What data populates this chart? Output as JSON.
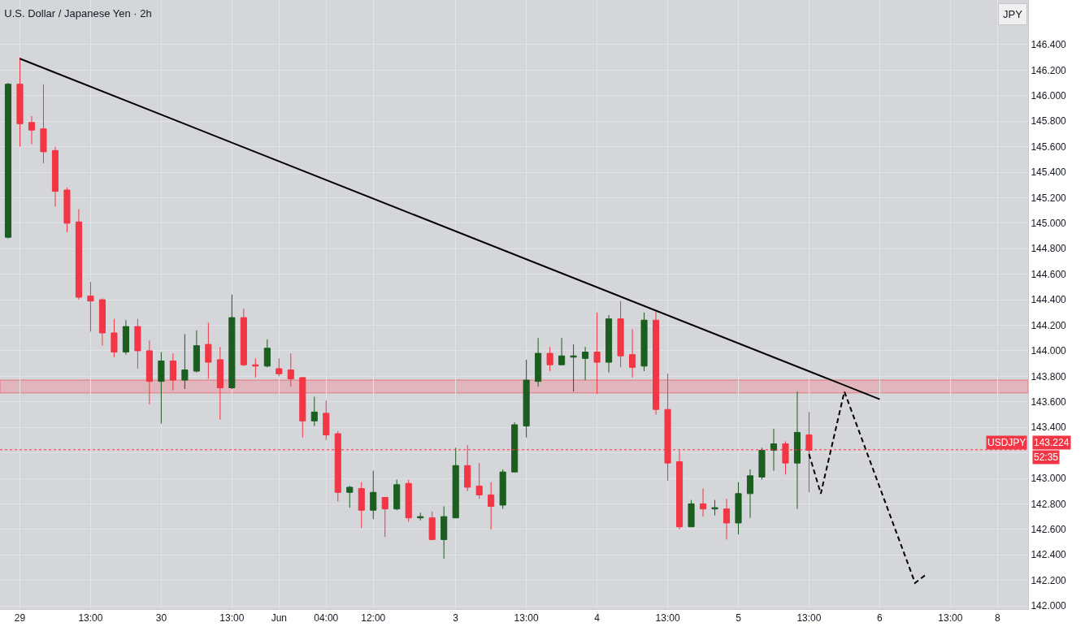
{
  "chart_data": {
    "type": "candlestick",
    "title": "U.S. Dollar / Japanese Yen · 2h",
    "categories": [
      null,
      "29",
      null,
      null,
      null,
      null,
      null,
      "13:00",
      null,
      null,
      null,
      null,
      null,
      "30",
      null,
      null,
      null,
      null,
      null,
      "13:00",
      null,
      null,
      null,
      "Jun",
      null,
      null,
      null,
      "04:00",
      null,
      null,
      null,
      "12:00",
      null,
      null,
      null,
      null,
      null,
      null,
      "3",
      null,
      null,
      null,
      null,
      null,
      "13:00",
      null,
      null,
      null,
      null,
      null,
      "4",
      null,
      null,
      null,
      null,
      null,
      "13:00",
      null,
      null,
      null,
      null,
      null,
      "5",
      null,
      null,
      null,
      null,
      null,
      "13:00",
      null,
      null,
      null,
      null,
      null,
      "6",
      null,
      null,
      null,
      null,
      null,
      "13:00",
      null,
      null,
      null,
      "8",
      null,
      null
    ],
    "ohlc": [
      [
        144.89,
        146.1,
        144.88,
        146.09
      ],
      [
        146.09,
        146.3,
        145.6,
        145.78
      ],
      [
        145.79,
        145.84,
        145.62,
        145.73
      ],
      [
        145.74,
        146.09,
        145.47,
        145.56
      ],
      [
        145.57,
        145.6,
        145.13,
        145.25
      ],
      [
        145.26,
        145.28,
        144.93,
        145.0
      ],
      [
        145.01,
        145.11,
        144.4,
        144.42
      ],
      [
        144.43,
        144.54,
        144.15,
        144.39
      ],
      [
        144.4,
        144.41,
        144.04,
        144.14
      ],
      [
        144.14,
        144.25,
        143.95,
        143.99
      ],
      [
        143.99,
        144.24,
        143.97,
        144.19
      ],
      [
        144.19,
        144.25,
        143.86,
        144.0
      ],
      [
        144.0,
        144.08,
        143.58,
        143.76
      ],
      [
        143.76,
        143.99,
        143.43,
        143.92
      ],
      [
        143.92,
        143.98,
        143.69,
        143.77
      ],
      [
        143.77,
        144.13,
        143.7,
        143.85
      ],
      [
        143.84,
        144.16,
        143.83,
        144.04
      ],
      [
        144.05,
        144.22,
        143.78,
        143.91
      ],
      [
        143.93,
        144.03,
        143.46,
        143.71
      ],
      [
        143.71,
        144.44,
        143.7,
        144.26
      ],
      [
        144.26,
        144.33,
        143.88,
        143.89
      ],
      [
        143.89,
        143.94,
        143.79,
        143.88
      ],
      [
        143.88,
        144.09,
        143.87,
        144.02
      ],
      [
        143.86,
        143.94,
        143.8,
        143.82
      ],
      [
        143.85,
        143.98,
        143.72,
        143.78
      ],
      [
        143.79,
        143.79,
        143.32,
        143.45
      ],
      [
        143.45,
        143.64,
        143.41,
        143.52
      ],
      [
        143.51,
        143.61,
        143.3,
        143.34
      ],
      [
        143.35,
        143.37,
        142.82,
        142.89
      ],
      [
        142.89,
        142.94,
        142.77,
        142.93
      ],
      [
        142.92,
        142.97,
        142.61,
        142.75
      ],
      [
        142.75,
        143.06,
        142.68,
        142.89
      ],
      [
        142.85,
        142.85,
        142.54,
        142.76
      ],
      [
        142.76,
        142.99,
        142.75,
        142.95
      ],
      [
        142.96,
        142.99,
        142.66,
        142.69
      ],
      [
        142.69,
        142.73,
        142.67,
        142.7
      ],
      [
        142.69,
        142.74,
        142.52,
        142.52
      ],
      [
        142.52,
        142.78,
        142.37,
        142.7
      ],
      [
        142.69,
        143.24,
        142.69,
        143.1
      ],
      [
        143.1,
        143.26,
        142.9,
        142.93
      ],
      [
        142.94,
        143.12,
        142.84,
        142.87
      ],
      [
        142.87,
        142.97,
        142.6,
        142.78
      ],
      [
        142.79,
        143.07,
        142.76,
        143.05
      ],
      [
        143.05,
        143.44,
        143.05,
        143.42
      ],
      [
        143.41,
        143.93,
        143.32,
        143.77
      ],
      [
        143.76,
        144.1,
        143.72,
        143.98
      ],
      [
        143.98,
        144.03,
        143.84,
        143.89
      ],
      [
        143.89,
        144.1,
        143.89,
        143.96
      ],
      [
        143.95,
        144.05,
        143.68,
        143.96
      ],
      [
        143.94,
        144.03,
        143.77,
        143.99
      ],
      [
        143.99,
        144.3,
        143.66,
        143.91
      ],
      [
        143.91,
        144.28,
        143.83,
        144.25
      ],
      [
        144.25,
        144.39,
        143.87,
        143.96
      ],
      [
        143.97,
        144.17,
        143.79,
        143.87
      ],
      [
        143.88,
        144.3,
        143.84,
        144.24
      ],
      [
        144.24,
        144.31,
        143.5,
        143.54
      ],
      [
        143.54,
        143.82,
        142.98,
        143.12
      ],
      [
        143.13,
        143.22,
        142.6,
        142.62
      ],
      [
        142.62,
        142.83,
        142.62,
        142.8
      ],
      [
        142.8,
        142.92,
        142.7,
        142.76
      ],
      [
        142.76,
        142.83,
        142.71,
        142.77
      ],
      [
        142.76,
        142.84,
        142.52,
        142.65
      ],
      [
        142.65,
        142.97,
        142.56,
        142.88
      ],
      [
        142.88,
        143.07,
        142.69,
        143.02
      ],
      [
        143.01,
        143.24,
        142.99,
        143.22
      ],
      [
        143.22,
        143.39,
        143.06,
        143.27
      ],
      [
        143.27,
        143.29,
        143.03,
        143.12
      ],
      [
        143.12,
        143.68,
        142.76,
        143.36
      ],
      [
        143.34,
        143.52,
        142.89,
        143.22
      ],
      null,
      null,
      null,
      null,
      null,
      null,
      null,
      null,
      null,
      null,
      null,
      null,
      null,
      null,
      null,
      null,
      null,
      null
    ],
    "colors": [
      "#1b5e20",
      "#f23645",
      "#f23645",
      "#f23645",
      "#f23645",
      "#f23645",
      "#f23645",
      "#f23645",
      "#f23645",
      "#f23645",
      "#1b5e20",
      "#f23645",
      "#f23645",
      "#1b5e20",
      "#f23645",
      "#1b5e20",
      "#1b5e20",
      "#f23645",
      "#f23645",
      "#1b5e20",
      "#f23645",
      "#f23645",
      "#1b5e20",
      "#f23645",
      "#f23645",
      "#f23645",
      "#1b5e20",
      "#f23645",
      "#f23645",
      "#1b5e20",
      "#f23645",
      "#1b5e20",
      "#f23645",
      "#1b5e20",
      "#f23645",
      "#1b5e20",
      "#f23645",
      "#1b5e20",
      "#1b5e20",
      "#f23645",
      "#f23645",
      "#f23645",
      "#1b5e20",
      "#1b5e20",
      "#1b5e20",
      "#1b5e20",
      "#f23645",
      "#1b5e20",
      "#1b5e20",
      "#1b5e20",
      "#f23645",
      "#1b5e20",
      "#f23645",
      "#f23645",
      "#1b5e20",
      "#f23645",
      "#f23645",
      "#f23645",
      "#1b5e20",
      "#f23645",
      "#1b5e20",
      "#f23645",
      "#1b5e20",
      "#1b5e20",
      "#1b5e20",
      "#1b5e20",
      "#f23645",
      "#1b5e20",
      "#f23645",
      null,
      null,
      null,
      null,
      null,
      null,
      null,
      null,
      null,
      null,
      null,
      null,
      null,
      null,
      null,
      null,
      null,
      null
    ],
    "series": [
      {
        "type": "line",
        "color": "#000000",
        "line_style": "solid",
        "values": [
          null,
          146.29,
          null,
          null,
          null,
          null,
          null,
          null,
          null,
          null,
          null,
          null,
          null,
          null,
          null,
          null,
          null,
          null,
          null,
          null,
          null,
          null,
          null,
          null,
          null,
          null,
          null,
          null,
          null,
          null,
          null,
          null,
          null,
          null,
          null,
          null,
          null,
          null,
          null,
          null,
          null,
          null,
          null,
          null,
          null,
          null,
          null,
          null,
          null,
          null,
          null,
          null,
          null,
          null,
          null,
          null,
          null,
          null,
          null,
          null,
          null,
          null,
          null,
          null,
          null,
          null,
          null,
          null,
          null,
          null,
          null,
          null,
          null,
          null,
          143.62,
          null,
          null,
          null,
          null,
          null,
          null,
          null,
          null,
          null,
          null,
          null,
          null
        ]
      },
      {
        "type": "line",
        "color": "#000000",
        "line_style": "dashed",
        "values": [
          null,
          null,
          null,
          null,
          null,
          null,
          null,
          null,
          null,
          null,
          null,
          null,
          null,
          null,
          null,
          null,
          null,
          null,
          null,
          null,
          null,
          null,
          null,
          null,
          null,
          null,
          null,
          null,
          null,
          null,
          null,
          null,
          null,
          null,
          null,
          null,
          null,
          null,
          null,
          null,
          null,
          null,
          null,
          null,
          null,
          null,
          null,
          null,
          null,
          null,
          null,
          null,
          null,
          null,
          null,
          null,
          null,
          null,
          null,
          null,
          null,
          null,
          null,
          null,
          null,
          null,
          null,
          null,
          143.19,
          142.88,
          null,
          143.68,
          null,
          null,
          null,
          null,
          null,
          142.18,
          142.25,
          null,
          null,
          null,
          null,
          null,
          null,
          null,
          null
        ]
      }
    ],
    "bands": [
      {
        "axis": "y",
        "from": 143.67,
        "to": 143.77,
        "color": "#e8a0a8"
      }
    ],
    "ref_lines": [
      {
        "axis": "y",
        "value": 143.224,
        "label": "143.224",
        "color": "#f23645",
        "line_style": "dotted"
      }
    ],
    "annotations": [
      "JPY",
      "USDJPY",
      "52:35"
    ],
    "ylim": [
      141.975,
      146.75
    ],
    "yticks": [
      {
        "value": 142.0,
        "label": "142.000"
      },
      {
        "value": 142.2,
        "label": "142.200"
      },
      {
        "value": 142.4,
        "label": "142.400"
      },
      {
        "value": 142.6,
        "label": "142.600"
      },
      {
        "value": 142.8,
        "label": "142.800"
      },
      {
        "value": 143.0,
        "label": "143.000"
      },
      {
        "value": 143.2,
        "label": null
      },
      {
        "value": 143.4,
        "label": "143.400"
      },
      {
        "value": 143.6,
        "label": "143.600"
      },
      {
        "value": 143.8,
        "label": "143.800"
      },
      {
        "value": 144.0,
        "label": "144.000"
      },
      {
        "value": 144.2,
        "label": "144.200"
      },
      {
        "value": 144.4,
        "label": "144.400"
      },
      {
        "value": 144.6,
        "label": "144.600"
      },
      {
        "value": 144.8,
        "label": "144.800"
      },
      {
        "value": 145.0,
        "label": "145.000"
      },
      {
        "value": 145.2,
        "label": "145.200"
      },
      {
        "value": 145.4,
        "label": "145.400"
      },
      {
        "value": 145.6,
        "label": "145.600"
      },
      {
        "value": 145.8,
        "label": "145.800"
      },
      {
        "value": 146.0,
        "label": "146.000"
      },
      {
        "value": 146.2,
        "label": "146.200"
      },
      {
        "value": 146.4,
        "label": "146.400"
      }
    ],
    "grid": true
  }
}
